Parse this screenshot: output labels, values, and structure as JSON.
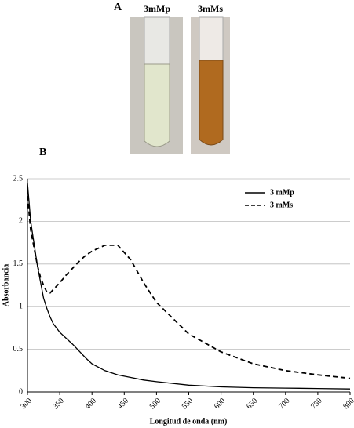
{
  "panel_a": {
    "label": "A",
    "samples": [
      "3mMp",
      "3mMs"
    ]
  },
  "chart_data": {
    "type": "line",
    "panel_label": "B",
    "x_label": "Longitud de onda (nm)",
    "y_label": "Absorbancia",
    "x": [
      300,
      305,
      310,
      315,
      320,
      325,
      330,
      335,
      340,
      350,
      360,
      370,
      380,
      390,
      400,
      420,
      440,
      460,
      480,
      500,
      550,
      600,
      650,
      700,
      750,
      800
    ],
    "series": [
      {
        "name": "3 mMp",
        "color": "#000000",
        "style": "solid",
        "values": [
          2.45,
          2.0,
          1.75,
          1.5,
          1.3,
          1.1,
          0.98,
          0.88,
          0.8,
          0.7,
          0.63,
          0.56,
          0.48,
          0.4,
          0.33,
          0.25,
          0.2,
          0.17,
          0.14,
          0.12,
          0.08,
          0.06,
          0.05,
          0.045,
          0.04,
          0.035
        ]
      },
      {
        "name": "3 mMs",
        "color": "#000000",
        "style": "dashed",
        "values": [
          2.3,
          1.9,
          1.7,
          1.5,
          1.35,
          1.25,
          1.17,
          1.16,
          1.2,
          1.28,
          1.37,
          1.45,
          1.53,
          1.6,
          1.65,
          1.72,
          1.72,
          1.55,
          1.28,
          1.05,
          0.68,
          0.47,
          0.33,
          0.25,
          0.2,
          0.16
        ]
      }
    ],
    "xlim": [
      300,
      800
    ],
    "xticks": [
      300,
      350,
      400,
      450,
      500,
      550,
      600,
      650,
      700,
      750,
      800
    ],
    "ylim": [
      0,
      2.5
    ],
    "yticks": [
      0,
      0.5,
      1,
      1.5,
      2,
      2.5
    ],
    "grid": true,
    "legend": "upper right"
  }
}
